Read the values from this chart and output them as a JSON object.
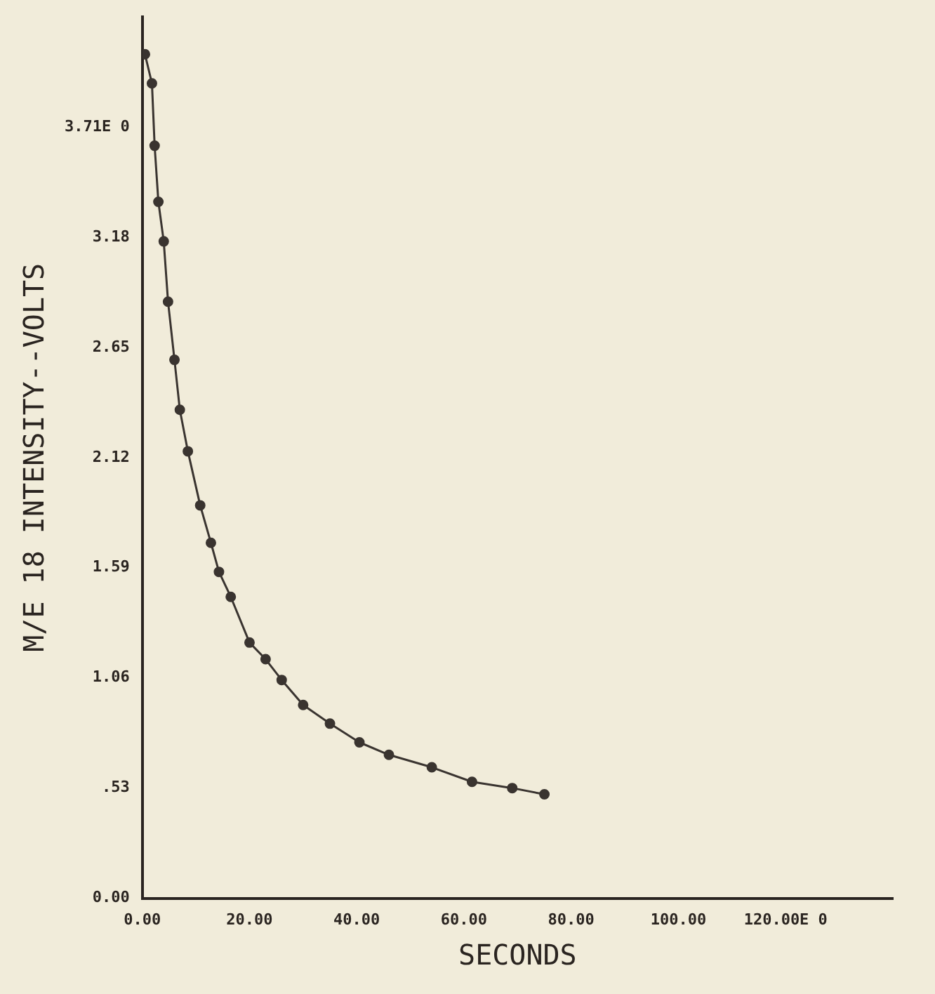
{
  "chart_data": {
    "type": "line",
    "xlabel": "SECONDS",
    "ylabel": "M/E 18 INTENSITY--VOLTS",
    "xlim": [
      0,
      140
    ],
    "ylim": [
      0,
      4.24
    ],
    "xticks": [
      {
        "value": 0,
        "label": "0.00"
      },
      {
        "value": 20,
        "label": "20.00"
      },
      {
        "value": 40,
        "label": "40.00"
      },
      {
        "value": 60,
        "label": "60.00"
      },
      {
        "value": 80,
        "label": "80.00"
      },
      {
        "value": 100,
        "label": "100.00"
      },
      {
        "value": 120,
        "label": "120.00E 0"
      }
    ],
    "yticks": [
      {
        "value": 0,
        "label": "0.00"
      },
      {
        "value": 0.53,
        "label": ".53"
      },
      {
        "value": 1.06,
        "label": "1.06"
      },
      {
        "value": 1.59,
        "label": "1.59"
      },
      {
        "value": 2.12,
        "label": "2.12"
      },
      {
        "value": 2.65,
        "label": "2.65"
      },
      {
        "value": 3.18,
        "label": "3.18"
      },
      {
        "value": 3.71,
        "label": "3.71E 0"
      }
    ],
    "grid": false,
    "marker": "circle",
    "line_style": "solid",
    "series": [
      {
        "color": "#3a3430",
        "x": [
          0.5,
          1.8,
          2.3,
          3,
          4,
          4.8,
          6,
          7,
          8.5,
          10.8,
          12.8,
          14.3,
          16.5,
          20,
          23,
          26,
          30,
          35,
          40.5,
          46,
          54,
          61.5,
          69,
          75
        ],
        "values": [
          4.06,
          3.92,
          3.62,
          3.35,
          3.16,
          2.87,
          2.59,
          2.35,
          2.15,
          1.89,
          1.71,
          1.57,
          1.45,
          1.23,
          1.15,
          1.05,
          0.93,
          0.84,
          0.75,
          0.69,
          0.63,
          0.56,
          0.53,
          0.5
        ]
      }
    ]
  }
}
